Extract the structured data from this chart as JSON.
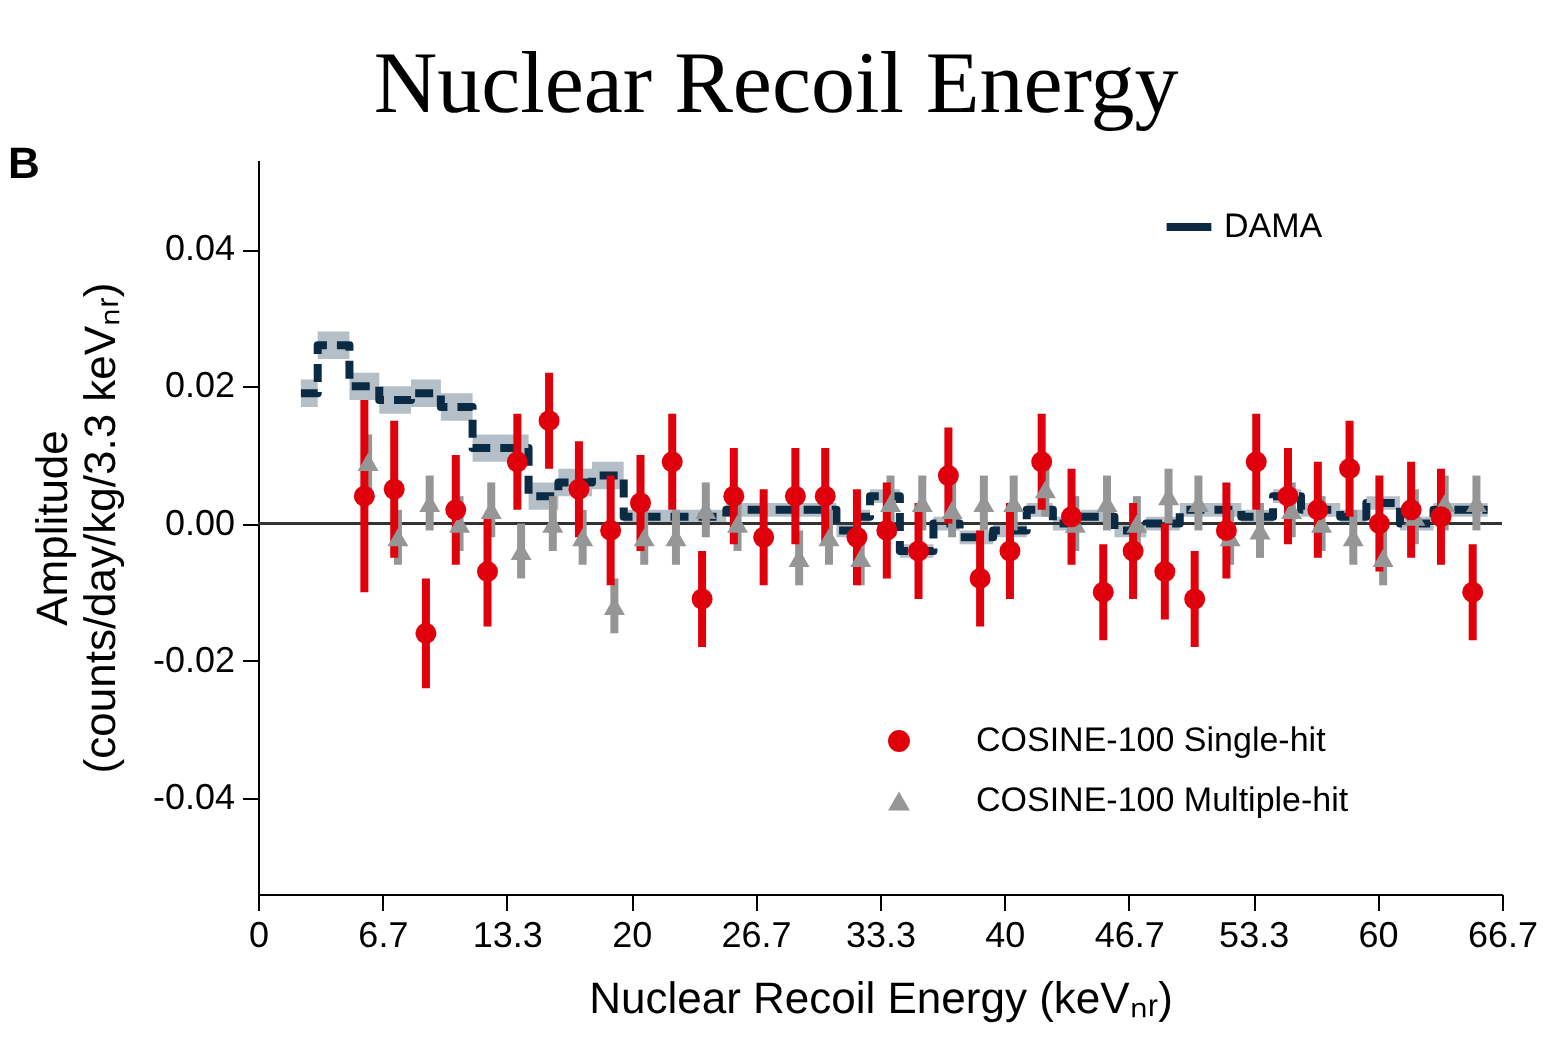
{
  "chart_data": {
    "type": "scatter",
    "title": "Nuclear Recoil Energy",
    "xlabel": "Nuclear Recoil Energy (keVₙᵣ)",
    "ylabel": "Amplitude\n(counts/day/kg/3.3 keVₙᵣ)",
    "annotations": [
      "B"
    ],
    "xlim": [
      0,
      66.67
    ],
    "xticks": [
      0,
      {
        "value": 6.667,
        "label": "6.7"
      },
      {
        "value": 13.333,
        "label": "13.3"
      },
      20,
      {
        "value": 26.667,
        "label": "26.7"
      },
      {
        "value": 33.333,
        "label": "33.3"
      },
      40,
      {
        "value": 46.667,
        "label": "46.7"
      },
      {
        "value": 53.333,
        "label": "53.3"
      },
      60,
      {
        "value": 66.667,
        "label": "66.7"
      }
    ],
    "ylim": [
      -0.054,
      0.053
    ],
    "yticks": [
      -0.04,
      -0.02,
      {
        "value": 0,
        "label": "0.00"
      },
      0.02,
      0.04
    ],
    "ref_lines": [
      {
        "axis": "y",
        "value": 0,
        "color": "#333333"
      }
    ],
    "legend": "top right",
    "series": [
      {
        "name": "DAMA",
        "type": "step",
        "color": "#0b2b45",
        "line_style": "dashed",
        "x": [
          2.3,
          3.2,
          4.9,
          6.5,
          8.2,
          9.8,
          11.5,
          14.5,
          16.1,
          17.9,
          19.6,
          21.2,
          23.5,
          25.1,
          26.2,
          27.6,
          29.4,
          31.0,
          31.9,
          32.8,
          34.4,
          36.2,
          37.6,
          39.4,
          41.2,
          42.6,
          44.1,
          45.9,
          47.6,
          49.4,
          52.7,
          54.4,
          55.9,
          58.0,
          59.4,
          61.2,
          63.0,
          65.9
        ],
        "values": [
          0.019,
          0.026,
          0.02,
          0.018,
          0.019,
          0.017,
          0.011,
          0.004,
          0.006,
          0.007,
          0.001,
          0.001,
          0.001,
          0.002,
          0.002,
          0.002,
          0.002,
          -0.001,
          0.001,
          0.004,
          -0.004,
          0.0,
          -0.002,
          -0.001,
          0.002,
          0.0,
          0.001,
          -0.001,
          0.0,
          0.002,
          0.001,
          0.004,
          0.002,
          0.001,
          0.003,
          0.0,
          0.002,
          0.002
        ],
        "lower": [
          0.017,
          0.024,
          0.018,
          0.016,
          0.017,
          0.015,
          0.009,
          0.002,
          0.004,
          0.005,
          0.0,
          0.0,
          0.0,
          0.001,
          0.001,
          0.001,
          0.001,
          -0.002,
          0.0,
          0.003,
          -0.005,
          -0.001,
          -0.003,
          -0.002,
          0.001,
          -0.001,
          0.0,
          -0.002,
          -0.001,
          0.001,
          0.0,
          0.003,
          0.001,
          0.0,
          0.002,
          -0.001,
          0.001,
          0.001
        ],
        "upper": [
          0.021,
          0.028,
          0.022,
          0.02,
          0.021,
          0.019,
          0.013,
          0.006,
          0.008,
          0.009,
          0.002,
          0.002,
          0.002,
          0.003,
          0.003,
          0.003,
          0.003,
          0.0,
          0.002,
          0.005,
          -0.003,
          0.001,
          -0.001,
          0.0,
          0.003,
          0.001,
          0.002,
          0.0,
          0.001,
          0.003,
          0.002,
          0.005,
          0.003,
          0.002,
          0.004,
          0.001,
          0.003,
          0.003
        ]
      },
      {
        "name": "COSINE-100 Multiple-hit",
        "color": "#969696",
        "marker": "triangle",
        "x": [
          5.9,
          7.5,
          9.2,
          10.8,
          12.5,
          14.1,
          15.8,
          17.4,
          19.1,
          20.7,
          22.4,
          24.0,
          25.7,
          27.3,
          29.0,
          30.6,
          32.3,
          33.9,
          35.6,
          37.2,
          38.9,
          40.5,
          42.2,
          43.8,
          45.5,
          47.1,
          48.8,
          50.4,
          52.1,
          53.7,
          55.4,
          57.0,
          58.7,
          60.3,
          62.0,
          63.6,
          65.3
        ],
        "values": [
          0.009,
          -0.002,
          0.003,
          0.0,
          0.002,
          -0.004,
          0.0,
          -0.002,
          -0.012,
          -0.002,
          -0.002,
          0.002,
          0.0,
          null,
          -0.005,
          -0.002,
          -0.005,
          0.003,
          0.003,
          0.002,
          0.003,
          0.003,
          0.005,
          0.0,
          0.003,
          0.0,
          0.004,
          0.003,
          -0.002,
          -0.001,
          0.002,
          0.0,
          -0.002,
          -0.005,
          0.001,
          0.003,
          0.003
        ],
        "errors": [
          0.004,
          0.004,
          0.004,
          0.004,
          0.004,
          0.004,
          0.004,
          0.004,
          0.004,
          0.004,
          0.004,
          0.004,
          0.004,
          null,
          0.004,
          0.004,
          0.004,
          0.004,
          0.004,
          0.004,
          0.004,
          0.004,
          0.004,
          0.004,
          0.004,
          0.004,
          0.004,
          0.004,
          0.004,
          0.004,
          0.004,
          0.004,
          0.004,
          0.004,
          0.004,
          0.004,
          0.004
        ]
      },
      {
        "name": "COSINE-100 Single-hit",
        "color": "#e0000b",
        "marker": "circle",
        "x": [
          5.7,
          7.3,
          9.0,
          10.6,
          12.3,
          13.9,
          15.6,
          17.2,
          18.9,
          20.5,
          22.2,
          23.8,
          25.5,
          27.1,
          28.8,
          30.4,
          32.1,
          33.7,
          35.4,
          37.0,
          38.7,
          40.3,
          42.0,
          43.6,
          45.3,
          46.9,
          48.6,
          50.2,
          51.9,
          53.5,
          55.2,
          56.8,
          58.5,
          60.1,
          61.8,
          63.4,
          65.1
        ],
        "values": [
          0.004,
          0.005,
          -0.016,
          0.002,
          -0.007,
          0.009,
          0.015,
          0.005,
          -0.001,
          0.003,
          0.009,
          -0.011,
          0.004,
          -0.002,
          0.004,
          0.004,
          -0.002,
          -0.001,
          -0.004,
          0.007,
          -0.008,
          -0.004,
          0.009,
          0.001,
          -0.01,
          -0.004,
          -0.007,
          -0.011,
          -0.001,
          0.009,
          0.004,
          0.002,
          0.008,
          0.0,
          0.002,
          0.001,
          -0.01
        ],
        "errors": [
          0.014,
          0.01,
          0.008,
          0.008,
          0.008,
          0.007,
          0.007,
          0.007,
          0.008,
          0.007,
          0.007,
          0.007,
          0.007,
          0.007,
          0.007,
          0.007,
          0.007,
          0.007,
          0.007,
          0.007,
          0.007,
          0.007,
          0.007,
          0.007,
          0.007,
          0.007,
          0.007,
          0.007,
          0.007,
          0.007,
          0.007,
          0.007,
          0.007,
          0.007,
          0.007,
          0.007,
          0.007
        ]
      }
    ]
  }
}
